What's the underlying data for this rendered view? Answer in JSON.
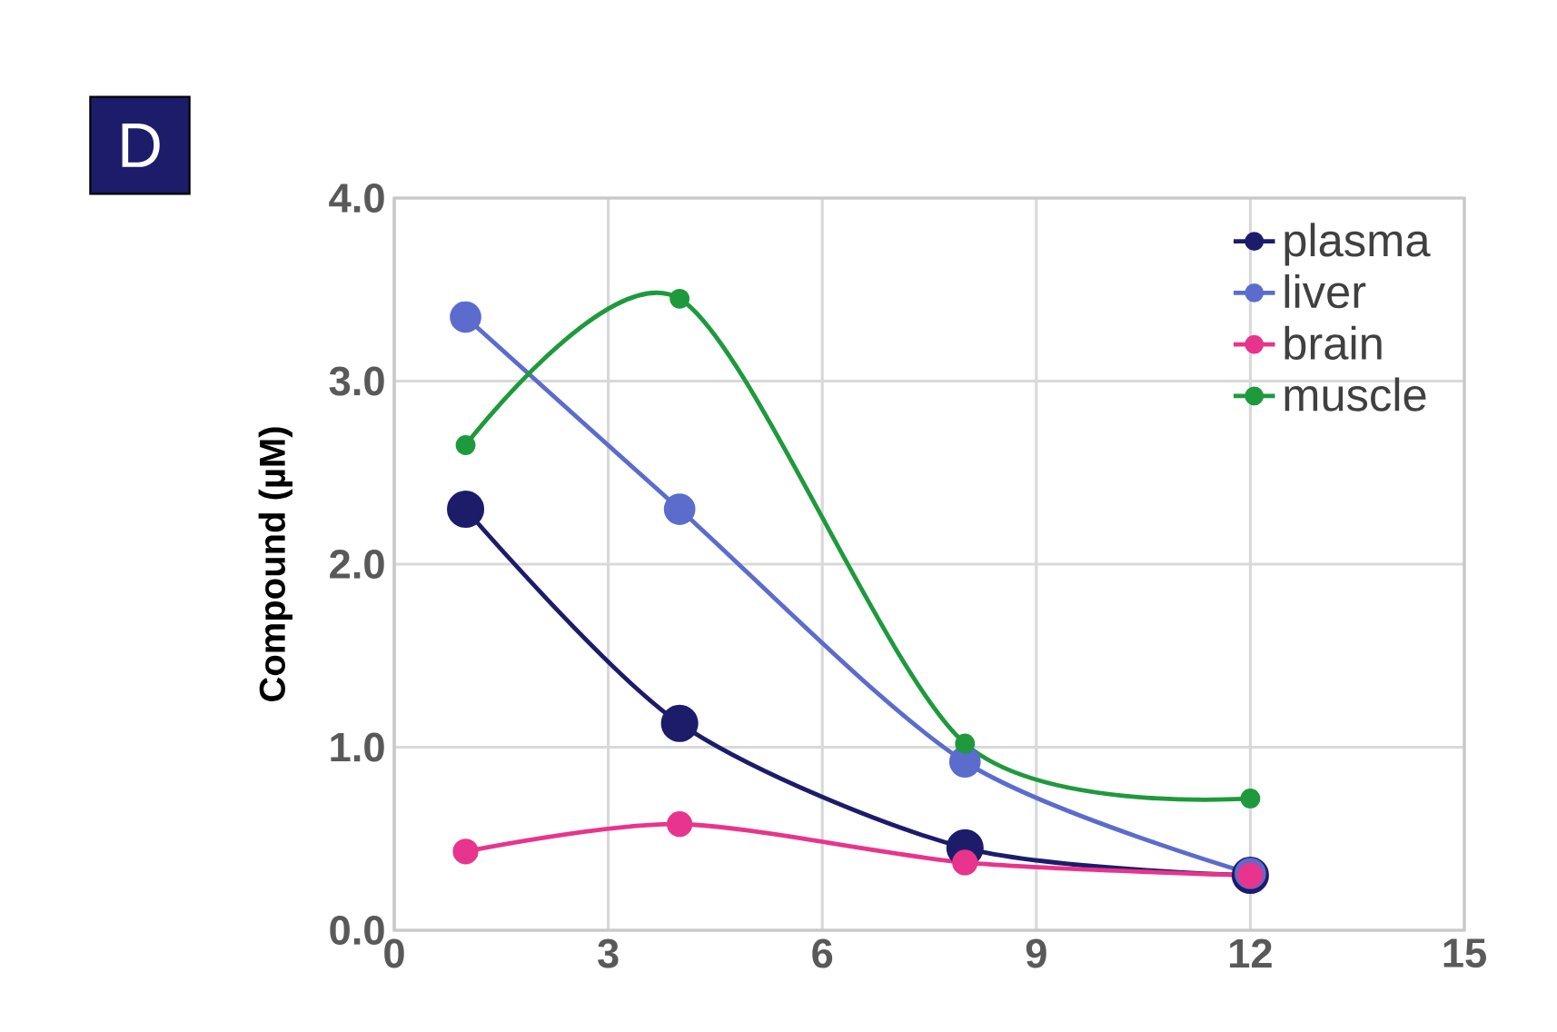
{
  "chart_data": {
    "type": "line",
    "ylabel": "Compound (µM)",
    "annotations": [
      "D"
    ],
    "x": [
      1,
      4,
      8,
      12
    ],
    "series": [
      {
        "name": "plasma",
        "color": "#1c1c6b",
        "values": [
          2.3,
          1.13,
          0.45,
          0.3
        ]
      },
      {
        "name": "liver",
        "color": "#5b6ccc",
        "values": [
          3.35,
          2.3,
          0.92,
          0.31
        ]
      },
      {
        "name": "brain",
        "color": "#e8348c",
        "values": [
          0.43,
          0.58,
          0.37,
          0.3
        ]
      },
      {
        "name": "muscle",
        "color": "#1e9a3c",
        "values": [
          2.65,
          3.45,
          1.02,
          0.72
        ]
      }
    ],
    "xlim": [
      0,
      15
    ],
    "xticks": [
      0,
      3,
      6,
      9,
      12,
      15
    ],
    "ylim": [
      0,
      4
    ],
    "yticks": [
      {
        "value": 0,
        "label": "0.0"
      },
      {
        "value": 1,
        "label": "1.0"
      },
      {
        "value": 2,
        "label": "2.0"
      },
      {
        "value": 3,
        "label": "3.0"
      },
      {
        "value": 4,
        "label": "4.0"
      }
    ],
    "grid": true,
    "legend": "top right",
    "marker": "circle",
    "line_style": "solid"
  }
}
